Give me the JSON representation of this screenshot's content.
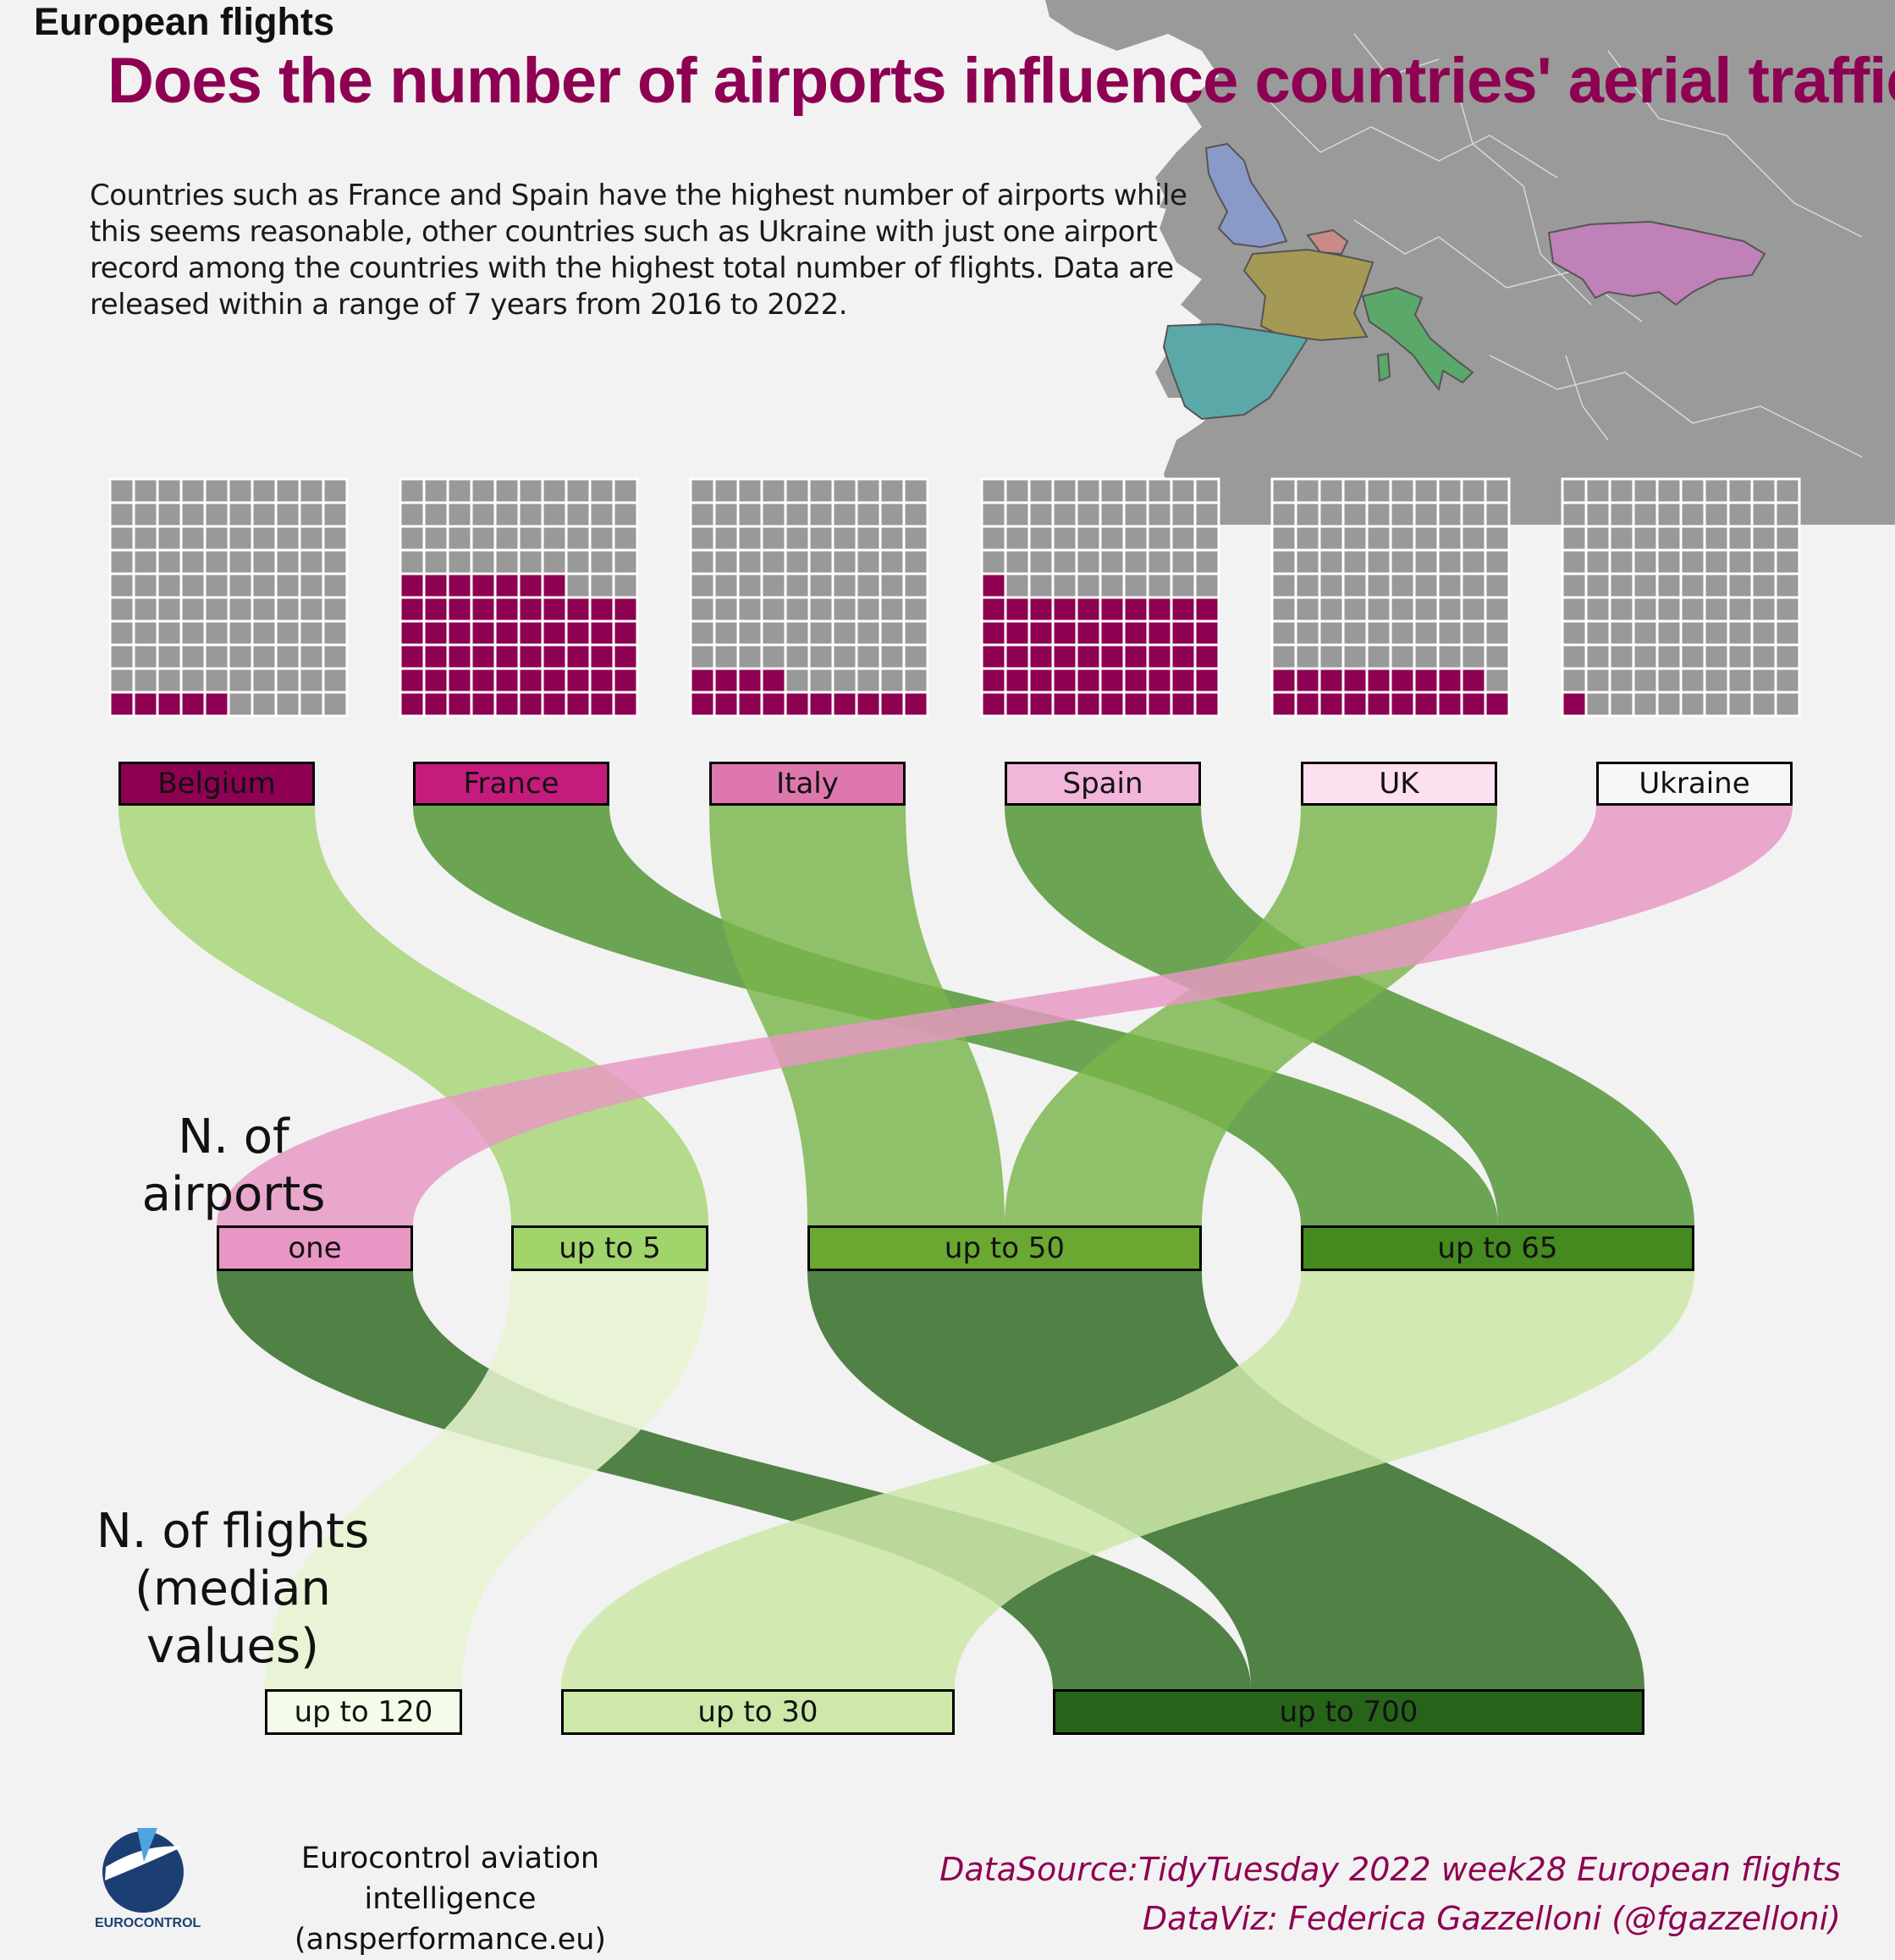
{
  "header": {
    "brand": "European flights",
    "title": "Does the number of airports influence countries' aerial traffic?",
    "intro": "Countries such as France and Spain have the highest number of airports while this seems reasonable, other countries such as Ukraine with just one airport record among the countries with the highest total number of flights. Data are released within a range of 7 years from 2016 to 2022."
  },
  "map": {
    "land_color": "#9a9a9a",
    "highlight_colors": {
      "Belgium": "#c98a8a",
      "France": "#a49a55",
      "Italy": "#5aa86a",
      "Spain": "#5aa8a8",
      "UK": "#8a9ac8",
      "Ukraine": "#c080b8"
    }
  },
  "colors": {
    "accent": "#8e0152",
    "waffle_empty": "#999999",
    "background": "#f2f2f2"
  },
  "chart_data": [
    {
      "type": "waffle",
      "grid": "10x10",
      "countries": [
        "Belgium",
        "France",
        "Italy",
        "Spain",
        "UK",
        "Ukraine"
      ],
      "filled_cells": [
        5,
        57,
        14,
        51,
        19,
        1
      ]
    },
    {
      "type": "alluvial",
      "stage_labels": [
        "",
        "N. of airports",
        "N. of flights\n(median values)"
      ],
      "stages": [
        {
          "nodes": [
            {
              "label": "Belgium",
              "color": "#8e0152"
            },
            {
              "label": "France",
              "color": "#c51b7d"
            },
            {
              "label": "Italy",
              "color": "#de77ae"
            },
            {
              "label": "Spain",
              "color": "#f1b6da"
            },
            {
              "label": "UK",
              "color": "#fde0ef"
            },
            {
              "label": "Ukraine",
              "color": "#f7f7f7"
            }
          ]
        },
        {
          "nodes": [
            {
              "label": "one",
              "color": "#e896c4"
            },
            {
              "label": "up to 5",
              "color": "#a1d46a"
            },
            {
              "label": "up to 50",
              "color": "#6aa832"
            },
            {
              "label": "up to 65",
              "color": "#448a1e"
            }
          ]
        },
        {
          "nodes": [
            {
              "label": "up to 120",
              "color": "#f4fbe8"
            },
            {
              "label": "up to 30",
              "color": "#cde8a8"
            },
            {
              "label": "up to 700",
              "color": "#276419"
            }
          ]
        }
      ],
      "flows_stage1": [
        {
          "from": "Belgium",
          "to": "up to 5",
          "color": "#a6d475"
        },
        {
          "from": "France",
          "to": "up to 65",
          "color": "#4d9230"
        },
        {
          "from": "Italy",
          "to": "up to 50",
          "color": "#7ab44a"
        },
        {
          "from": "Spain",
          "to": "up to 65",
          "color": "#4d9230"
        },
        {
          "from": "UK",
          "to": "up to 50",
          "color": "#7ab44a"
        },
        {
          "from": "Ukraine",
          "to": "one",
          "color": "#e896c4"
        }
      ],
      "flows_stage2": [
        {
          "from": "one",
          "to": "up to 700",
          "color": "#276419"
        },
        {
          "from": "up to 5",
          "to": "up to 120",
          "color": "#e6f5d0"
        },
        {
          "from": "up to 50",
          "to": "up to 700",
          "color": "#276419"
        },
        {
          "from": "up to 65",
          "to": "up to 30",
          "color": "#cde8a8"
        }
      ]
    }
  ],
  "footer": {
    "org_line1": "Eurocontrol aviation intelligence",
    "org_line2": "(ansperformance.eu)",
    "logo_text": "EUROCONTROL",
    "source": "DataSource:TidyTuesday 2022 week28 European flights",
    "credit": "DataViz: Federica Gazzelloni (@fgazzelloni)"
  }
}
